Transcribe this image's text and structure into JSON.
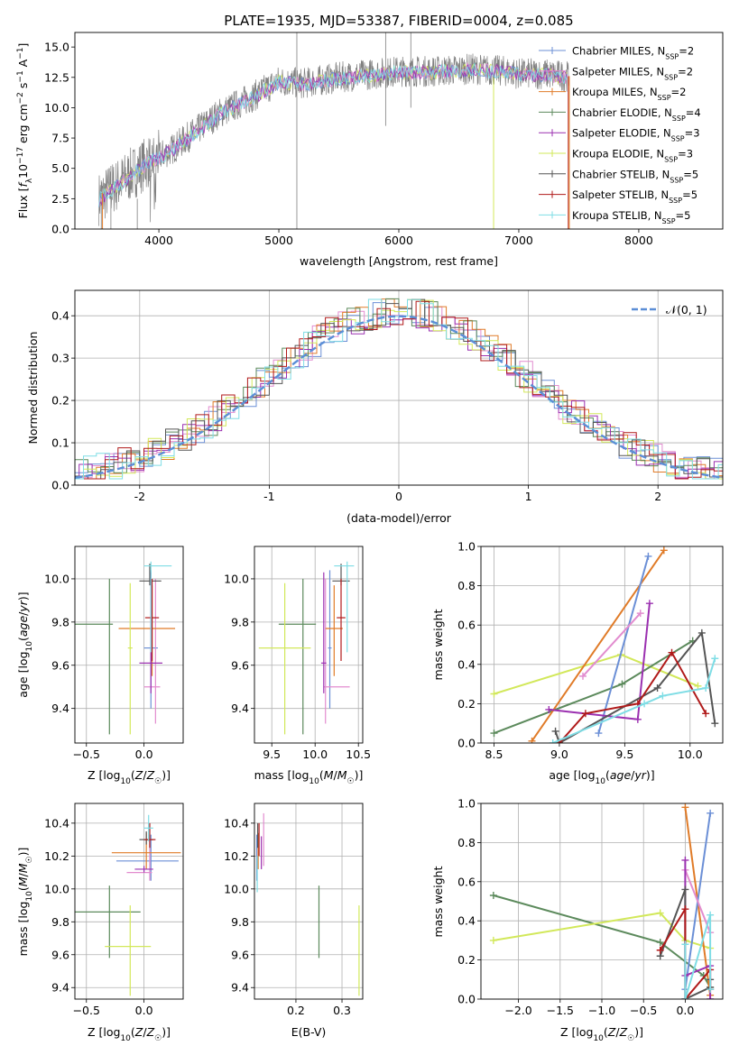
{
  "colors": {
    "Chabrier MILES": "#6b8fd6",
    "Salpeter MILES": "#e28ccf",
    "Kroupa MILES": "#e07b28",
    "Chabrier ELODIE": "#5c8a5c",
    "Salpeter ELODIE": "#9b30b0",
    "Kroupa ELODIE": "#d2e85a",
    "Chabrier STELIB": "#555555",
    "Salpeter STELIB": "#b01a1a",
    "Kroupa STELIB": "#7fdde5",
    "normal": "#5b8ed6"
  },
  "chart_data": [
    {
      "id": "spectrum",
      "type": "line",
      "title": "PLATE=1935, MJD=53387, FIBERID=0004, z=0.085",
      "xlabel": "wavelength [Angstrom, rest frame]",
      "ylabel": "Flux [f_λ10^-17 erg cm^-2 s^-1 A^-1]",
      "xlim": [
        3300,
        8700
      ],
      "ylim": [
        0,
        16.2
      ],
      "xticks": [
        "4000",
        "5000",
        "6000",
        "7000",
        "8000"
      ],
      "yticks": [
        "0.0",
        "2.5",
        "5.0",
        "7.5",
        "10.0",
        "12.5",
        "15.0"
      ],
      "grid": false,
      "legend_position": "top-right",
      "legend": [
        {
          "model": "Chabrier MILES",
          "nssp": "=2"
        },
        {
          "model": "Salpeter MILES",
          "nssp": "=2"
        },
        {
          "model": "Kroupa MILES",
          "nssp": "=2"
        },
        {
          "model": "Chabrier ELODIE",
          "nssp": "=4"
        },
        {
          "model": "Salpeter ELODIE",
          "nssp": "=3"
        },
        {
          "model": "Kroupa ELODIE",
          "nssp": "=3"
        },
        {
          "model": "Chabrier STELIB",
          "nssp": "=5"
        },
        {
          "model": "Salpeter STELIB",
          "nssp": "=5"
        },
        {
          "model": "Kroupa STELIB",
          "nssp": "=5"
        }
      ],
      "data_series": {
        "wavelength": [
          3500,
          3700,
          3900,
          4100,
          4300,
          4500,
          4800,
          5000,
          5200,
          5500,
          5800,
          6000,
          6300,
          6600,
          6900,
          7000,
          7200,
          7400
        ],
        "flux": [
          2.5,
          4.0,
          5.5,
          6.5,
          8.0,
          9.5,
          11.0,
          12.2,
          12.0,
          12.5,
          12.8,
          13.0,
          13.0,
          13.2,
          13.0,
          12.8,
          12.8,
          12.6
        ]
      }
    },
    {
      "id": "residuals",
      "type": "step",
      "xlabel": "(data-model)/error",
      "ylabel": "Normed distribution",
      "xlim": [
        -2.5,
        2.5
      ],
      "ylim": [
        0,
        0.46
      ],
      "xticks": [
        -2,
        -1,
        0,
        1,
        2
      ],
      "yticks": [
        "0.0",
        "0.1",
        "0.2",
        "0.3",
        "0.4"
      ],
      "grid": true,
      "legend_position": "top-right",
      "gaussian_label": "𝒩(0, 1)",
      "bin_width": 0.1
    },
    {
      "id": "age_vs_Z",
      "type": "errorbar",
      "xlabel": "Z [log10(Z/Z☉)]",
      "ylabel": "age  [log10(age/yr)]",
      "xlim": [
        -0.6,
        0.34
      ],
      "ylim": [
        9.24,
        10.15
      ],
      "xticks": [
        "−0.5",
        "0.0"
      ],
      "yticks": [
        "9.4",
        "9.6",
        "9.8",
        "10.0"
      ],
      "grid": true,
      "points": [
        {
          "model": "Chabrier MILES",
          "x": 0.06,
          "xerr": [
            0.06,
            0.06
          ],
          "y": 9.68,
          "yerr": [
            0.28,
            0.36
          ]
        },
        {
          "model": "Salpeter MILES",
          "x": 0.1,
          "xerr": [
            0.1,
            0.04
          ],
          "y": 9.5,
          "yerr": [
            0.17,
            0.5
          ]
        },
        {
          "model": "Kroupa MILES",
          "x": 0.07,
          "xerr": [
            0.29,
            0.2
          ],
          "y": 9.77,
          "yerr": [
            0.22,
            0.2
          ]
        },
        {
          "model": "Chabrier ELODIE",
          "x": -0.3,
          "xerr": [
            0.3,
            0.03
          ],
          "y": 9.79,
          "yerr": [
            0.51,
            0.21
          ]
        },
        {
          "model": "Salpeter ELODIE",
          "x": 0.06,
          "xerr": [
            0.1,
            0.1
          ],
          "y": 9.61,
          "yerr": [
            0.14,
            0.42
          ]
        },
        {
          "model": "Kroupa ELODIE",
          "x": -0.12,
          "xerr": [
            0.02,
            0.02
          ],
          "y": 9.68,
          "yerr": [
            0.4,
            0.3
          ]
        },
        {
          "model": "Chabrier STELIB",
          "x": 0.05,
          "xerr": [
            0.09,
            0.1
          ],
          "y": 9.99,
          "yerr": [
            0.02,
            0.08
          ]
        },
        {
          "model": "Salpeter STELIB",
          "x": 0.07,
          "xerr": [
            0.06,
            0.06
          ],
          "y": 9.82,
          "yerr": [
            0.2,
            0.18
          ]
        },
        {
          "model": "Kroupa STELIB",
          "x": 0.06,
          "xerr": [
            0.06,
            0.18
          ],
          "y": 10.06,
          "yerr": [
            0.4,
            0.02
          ]
        }
      ]
    },
    {
      "id": "age_vs_mass",
      "type": "errorbar",
      "xlabel": "mass [log10(M/M☉)]",
      "xlim": [
        9.3,
        10.55
      ],
      "ylim": [
        9.24,
        10.15
      ],
      "xticks": [
        "9.5",
        "10.0",
        "10.5"
      ],
      "yticks": [
        "9.4",
        "9.6",
        "9.8",
        "10.0"
      ],
      "grid": true,
      "points": [
        {
          "model": "Chabrier MILES",
          "x": 10.17,
          "xerr": [
            0.02,
            0.02
          ],
          "y": 9.68,
          "yerr": [
            0.28,
            0.36
          ]
        },
        {
          "model": "Salpeter MILES",
          "x": 10.12,
          "xerr": [
            0.02,
            0.28
          ],
          "y": 9.5,
          "yerr": [
            0.17,
            0.5
          ]
        },
        {
          "model": "Kroupa MILES",
          "x": 10.22,
          "xerr": [
            0.1,
            0.1
          ],
          "y": 9.77,
          "yerr": [
            0.22,
            0.2
          ]
        },
        {
          "model": "Chabrier ELODIE",
          "x": 9.86,
          "xerr": [
            0.28,
            0.15
          ],
          "y": 9.79,
          "yerr": [
            0.51,
            0.21
          ]
        },
        {
          "model": "Salpeter ELODIE",
          "x": 10.1,
          "xerr": [
            0.03,
            0.03
          ],
          "y": 9.61,
          "yerr": [
            0.14,
            0.42
          ]
        },
        {
          "model": "Kroupa ELODIE",
          "x": 9.65,
          "xerr": [
            0.3,
            0.3
          ],
          "y": 9.68,
          "yerr": [
            0.4,
            0.3
          ]
        },
        {
          "model": "Chabrier STELIB",
          "x": 10.3,
          "xerr": [
            0.1,
            0.1
          ],
          "y": 9.99,
          "yerr": [
            0.02,
            0.08
          ]
        },
        {
          "model": "Salpeter STELIB",
          "x": 10.3,
          "xerr": [
            0.05,
            0.05
          ],
          "y": 9.82,
          "yerr": [
            0.2,
            0.18
          ]
        },
        {
          "model": "Kroupa STELIB",
          "x": 10.37,
          "xerr": [
            0.15,
            0.08
          ],
          "y": 10.06,
          "yerr": [
            0.4,
            0.02
          ]
        }
      ]
    },
    {
      "id": "weight_vs_age",
      "type": "line",
      "xlabel": "age  [log10(age/yr)]",
      "ylabel": "mass weight",
      "xlim": [
        8.4,
        10.25
      ],
      "ylim": [
        0,
        1
      ],
      "xticks": [
        "8.5",
        "9.0",
        "9.5",
        "10.0"
      ],
      "yticks": [
        "0.0",
        "0.2",
        "0.4",
        "0.6",
        "0.8",
        "1.0"
      ],
      "grid": true,
      "series": [
        {
          "model": "Kroupa ELODIE",
          "x": [
            8.5,
            9.47,
            10.06
          ],
          "y": [
            0.25,
            0.45,
            0.29
          ]
        },
        {
          "model": "Chabrier ELODIE",
          "x": [
            8.5,
            9.48,
            10.02
          ],
          "y": [
            0.05,
            0.3,
            0.52
          ]
        },
        {
          "model": "Kroupa MILES",
          "x": [
            8.79,
            9.8
          ],
          "y": [
            0.01,
            0.98
          ]
        },
        {
          "model": "Chabrier MILES",
          "x": [
            9.3,
            9.68
          ],
          "y": [
            0.05,
            0.95
          ]
        },
        {
          "model": "Salpeter MILES",
          "x": [
            9.18,
            9.62
          ],
          "y": [
            0.34,
            0.66
          ]
        },
        {
          "model": "Salpeter ELODIE",
          "x": [
            8.92,
            9.6,
            9.69
          ],
          "y": [
            0.17,
            0.12,
            0.71
          ]
        },
        {
          "model": "Chabrier STELIB",
          "x": [
            8.97,
            9.0,
            9.75,
            10.09,
            10.19
          ],
          "y": [
            0.06,
            0.0,
            0.28,
            0.56,
            0.1
          ]
        },
        {
          "model": "Salpeter STELIB",
          "x": [
            9.0,
            9.2,
            9.6,
            9.86,
            10.12
          ],
          "y": [
            0.0,
            0.15,
            0.2,
            0.46,
            0.15
          ]
        },
        {
          "model": "Kroupa STELIB",
          "x": [
            8.95,
            9.65,
            9.79,
            10.12,
            10.19
          ],
          "y": [
            0.0,
            0.2,
            0.24,
            0.28,
            0.43
          ]
        }
      ]
    },
    {
      "id": "mass_vs_Z",
      "type": "errorbar",
      "xlabel": "Z [log10(Z/Z☉)]",
      "ylabel": "mass [log10(M/M☉)]",
      "xlim": [
        -0.6,
        0.34
      ],
      "ylim": [
        9.33,
        10.52
      ],
      "xticks": [
        "−0.5",
        "0.0"
      ],
      "yticks": [
        "9.4",
        "9.6",
        "9.8",
        "10.0",
        "10.2",
        "10.4"
      ],
      "grid": true,
      "points": [
        {
          "model": "Chabrier MILES",
          "x": 0.06,
          "xerr": [
            0.3,
            0.24
          ],
          "y": 10.17,
          "yerr": [
            0.12,
            0.16
          ]
        },
        {
          "model": "Salpeter MILES",
          "x": 0.05,
          "xerr": [
            0.2,
            0.02
          ],
          "y": 10.1,
          "yerr": [
            0.05,
            0.2
          ]
        },
        {
          "model": "Kroupa MILES",
          "x": 0.02,
          "xerr": [
            0.3,
            0.3
          ],
          "y": 10.22,
          "yerr": [
            0.1,
            0.12
          ]
        },
        {
          "model": "Chabrier ELODIE",
          "x": -0.3,
          "xerr": [
            0.3,
            0.27
          ],
          "y": 9.86,
          "yerr": [
            0.28,
            0.16
          ]
        },
        {
          "model": "Salpeter ELODIE",
          "x": 0.0,
          "xerr": [
            0.08,
            0.08
          ],
          "y": 10.12,
          "yerr": [
            0.02,
            0.02
          ]
        },
        {
          "model": "Kroupa ELODIE",
          "x": -0.12,
          "xerr": [
            0.22,
            0.18
          ],
          "y": 9.65,
          "yerr": [
            0.3,
            0.25
          ]
        },
        {
          "model": "Chabrier STELIB",
          "x": 0.02,
          "xerr": [
            0.06,
            0.06
          ],
          "y": 10.3,
          "yerr": [
            0.03,
            0.05
          ]
        },
        {
          "model": "Salpeter STELIB",
          "x": 0.05,
          "xerr": [
            0.05,
            0.05
          ],
          "y": 10.3,
          "yerr": [
            0.05,
            0.1
          ]
        },
        {
          "model": "Kroupa STELIB",
          "x": 0.04,
          "xerr": [
            0.04,
            0.04
          ],
          "y": 10.37,
          "yerr": [
            0.08,
            0.08
          ]
        }
      ]
    },
    {
      "id": "mass_vs_ebv",
      "type": "errorbar",
      "xlabel": "E(B-V)",
      "xlim": [
        0.11,
        0.345
      ],
      "ylim": [
        9.33,
        10.52
      ],
      "xticks": [
        "0.2",
        "0.3"
      ],
      "yticks": [
        "9.4",
        "9.6",
        "9.8",
        "10.0",
        "10.2",
        "10.4"
      ],
      "grid": true,
      "points": [
        {
          "model": "Chabrier MILES",
          "x": 0.115,
          "xerr": [
            0,
            0
          ],
          "y": 10.17,
          "yerr": [
            0.12,
            0.16
          ]
        },
        {
          "model": "Salpeter MILES",
          "x": 0.13,
          "xerr": [
            0,
            0
          ],
          "y": 10.26,
          "yerr": [
            0.12,
            0.2
          ]
        },
        {
          "model": "Kroupa MILES",
          "x": 0.118,
          "xerr": [
            0,
            0
          ],
          "y": 10.22,
          "yerr": [
            0.1,
            0.12
          ]
        },
        {
          "model": "Chabrier ELODIE",
          "x": 0.25,
          "xerr": [
            0,
            0
          ],
          "y": 9.8,
          "yerr": [
            0.22,
            0.22
          ]
        },
        {
          "model": "Salpeter ELODIE",
          "x": 0.125,
          "xerr": [
            0,
            0
          ],
          "y": 10.2,
          "yerr": [
            0.08,
            0.12
          ]
        },
        {
          "model": "Kroupa ELODIE",
          "x": 0.337,
          "xerr": [
            0,
            0
          ],
          "y": 9.65,
          "yerr": [
            0.3,
            0.25
          ]
        },
        {
          "model": "Chabrier STELIB",
          "x": 0.117,
          "xerr": [
            0,
            0
          ],
          "y": 10.3,
          "yerr": [
            0.05,
            0.1
          ]
        },
        {
          "model": "Salpeter STELIB",
          "x": 0.12,
          "xerr": [
            0,
            0
          ],
          "y": 10.3,
          "yerr": [
            0.1,
            0.1
          ]
        },
        {
          "model": "Kroupa STELIB",
          "x": 0.116,
          "xerr": [
            0,
            0
          ],
          "y": 10.1,
          "yerr": [
            0.12,
            0.1
          ]
        }
      ]
    },
    {
      "id": "weight_vs_Z",
      "type": "line",
      "xlabel": "Z [log10(Z/Z☉)]",
      "ylabel": "mass weight",
      "xlim": [
        -2.45,
        0.45
      ],
      "ylim": [
        0,
        1
      ],
      "xticks": [
        "−2.0",
        "−1.5",
        "−1.0",
        "−0.5",
        "0.0"
      ],
      "yticks": [
        "0.0",
        "0.2",
        "0.4",
        "0.6",
        "0.8",
        "1.0"
      ],
      "grid": true,
      "series": [
        {
          "model": "Chabrier ELODIE",
          "x": [
            -2.3,
            -0.3,
            0.22,
            0.3
          ],
          "y": [
            0.53,
            0.29,
            0.12,
            0.06
          ]
        },
        {
          "model": "Kroupa ELODIE",
          "x": [
            -2.3,
            -0.3,
            0.0,
            0.3
          ],
          "y": [
            0.3,
            0.44,
            0.3,
            0.26
          ]
        },
        {
          "model": "Kroupa MILES",
          "x": [
            0.0,
            0.3
          ],
          "y": [
            0.98,
            0.02
          ]
        },
        {
          "model": "Chabrier MILES",
          "x": [
            0.0,
            0.3
          ],
          "y": [
            0.05,
            0.95
          ]
        },
        {
          "model": "Salpeter MILES",
          "x": [
            0.0,
            0.3
          ],
          "y": [
            0.66,
            0.34
          ]
        },
        {
          "model": "Salpeter ELODIE",
          "x": [
            0.0,
            0.0,
            0.3,
            0.3
          ],
          "y": [
            0.71,
            0.12,
            0.17,
            0.0
          ]
        },
        {
          "model": "Chabrier STELIB",
          "x": [
            -0.3,
            0.0,
            0.0,
            0.3,
            0.3
          ],
          "y": [
            0.22,
            0.56,
            0.0,
            0.06,
            0.1
          ]
        },
        {
          "model": "Salpeter STELIB",
          "x": [
            -0.3,
            0.0,
            0.0,
            0.3,
            0.3
          ],
          "y": [
            0.25,
            0.46,
            0.0,
            0.15,
            0.05
          ]
        },
        {
          "model": "Kroupa STELIB",
          "x": [
            0.0,
            0.0,
            0.3,
            0.3
          ],
          "y": [
            0.28,
            0.0,
            0.43,
            0.05
          ]
        }
      ]
    }
  ]
}
